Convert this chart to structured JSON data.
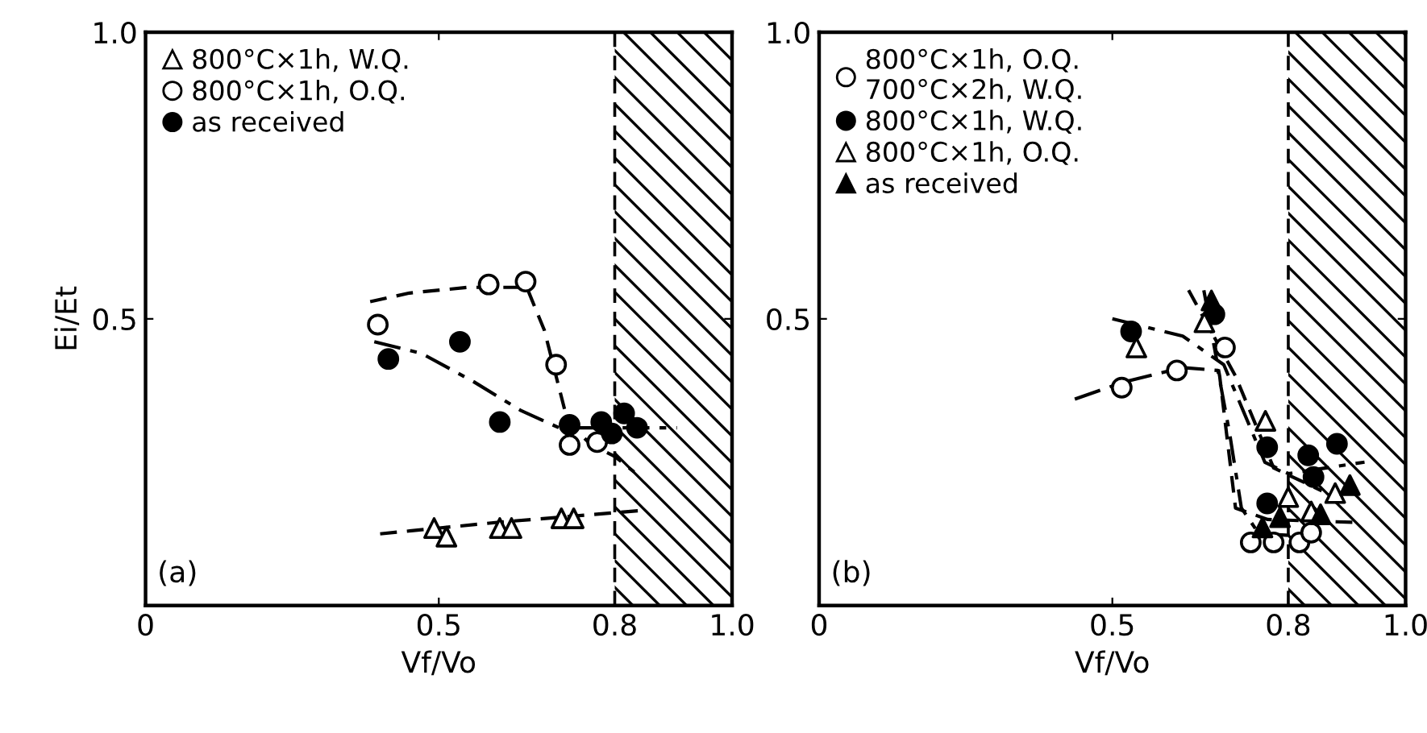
{
  "chart_data": [
    {
      "type": "scatter",
      "xlabel": "Vf/Vo",
      "ylabel": "Ei/Et",
      "xlim": [
        0,
        1.0
      ],
      "ylim": [
        0,
        1.0
      ],
      "xticks": [
        0,
        0.5,
        0.8,
        {
          "value": 1,
          "label": "1.0"
        }
      ],
      "yticks": [
        {
          "value": 0,
          "label": null
        },
        {
          "value": 0.5,
          "label": "0.5"
        },
        {
          "value": 1,
          "label": "1.0"
        }
      ],
      "legend": "top left",
      "grid": false,
      "annotations": [
        "(a)"
      ],
      "bands": [
        {
          "axis": "x",
          "from": 0.8,
          "to": 1.0
        }
      ],
      "ref_lines": [
        {
          "axis": "x",
          "value": 0.8,
          "line_style": "dashed"
        }
      ],
      "series": [
        {
          "name": "800°C×1h, W.Q.",
          "marker": "triangle",
          "color": "#ffffff",
          "x": [
            0.492,
            0.513,
            0.604,
            0.624,
            0.709,
            0.73
          ],
          "values": [
            0.135,
            0.12,
            0.135,
            0.135,
            0.152,
            0.152
          ]
        },
        {
          "name": "800°C×1h, O.Q.",
          "marker": "circle",
          "color": "#ffffff",
          "x": [
            0.396,
            0.585,
            0.648,
            0.7,
            0.723,
            0.77
          ],
          "values": [
            0.49,
            0.56,
            0.565,
            0.42,
            0.28,
            0.285
          ]
        },
        {
          "name": "as received",
          "marker": "circle",
          "color": "#000000",
          "x": [
            0.414,
            0.536,
            0.604,
            0.723,
            0.777,
            0.795,
            0.816,
            0.838
          ],
          "values": [
            0.43,
            0.46,
            0.32,
            0.315,
            0.32,
            0.3,
            0.335,
            0.31
          ]
        },
        {
          "type": "line",
          "line_style": "dashed",
          "color": "#000000",
          "x": [
            0.4,
            0.6,
            0.85
          ],
          "values": [
            0.125,
            0.145,
            0.166
          ]
        },
        {
          "type": "line",
          "line_style": "dashed",
          "color": "#000000",
          "x": [
            0.383,
            0.45,
            0.55,
            0.65,
            0.68,
            0.72,
            0.76,
            0.8,
            0.833
          ],
          "values": [
            0.53,
            0.545,
            0.555,
            0.555,
            0.48,
            0.32,
            0.28,
            0.26,
            0.233
          ]
        },
        {
          "type": "line",
          "line_style": "dashdot",
          "color": "#000000",
          "x": [
            0.39,
            0.47,
            0.56,
            0.64,
            0.705,
            0.8,
            0.906
          ],
          "values": [
            0.46,
            0.44,
            0.39,
            0.34,
            0.31,
            0.31,
            0.31
          ]
        }
      ]
    },
    {
      "type": "scatter",
      "xlabel": "Vf/Vo",
      "xlim": [
        0,
        1.0
      ],
      "ylim": [
        0,
        1.0
      ],
      "xticks": [
        0,
        0.5,
        0.8,
        {
          "value": 1,
          "label": "1.0"
        }
      ],
      "yticks": [
        {
          "value": 0,
          "label": null
        },
        {
          "value": 0.5,
          "label": "0.5"
        },
        {
          "value": 1,
          "label": "1.0"
        }
      ],
      "legend": "top left",
      "grid": false,
      "annotations": [
        "(b)"
      ],
      "bands": [
        {
          "axis": "x",
          "from": 0.8,
          "to": 1.0
        }
      ],
      "ref_lines": [
        {
          "axis": "x",
          "value": 0.8,
          "line_style": "dashed"
        }
      ],
      "series": [
        {
          "name": "800°C×1h, O.Q.\n700°C×2h, W.Q.",
          "marker": "circle",
          "color": "#ffffff",
          "x": [
            0.516,
            0.61,
            0.692,
            0.736,
            0.775,
            0.819,
            0.839
          ],
          "values": [
            0.38,
            0.41,
            0.45,
            0.11,
            0.11,
            0.11,
            0.127
          ]
        },
        {
          "name": "800°C×1h, W.Q.",
          "marker": "circle",
          "color": "#000000",
          "x": [
            0.532,
            0.674,
            0.764,
            0.764,
            0.834,
            0.843,
            0.883
          ],
          "values": [
            0.478,
            0.508,
            0.276,
            0.178,
            0.262,
            0.224,
            0.282
          ]
        },
        {
          "name": "800°C×1h, O.Q.",
          "marker": "triangle",
          "color": "#ffffff",
          "x": [
            0.541,
            0.657,
            0.761,
            0.8,
            0.839,
            0.88
          ],
          "values": [
            0.45,
            0.494,
            0.322,
            0.189,
            0.164,
            0.196
          ]
        },
        {
          "name": "as received",
          "marker": "triangle",
          "color": "#000000",
          "x": [
            0.669,
            0.756,
            0.786,
            0.855,
            0.905
          ],
          "values": [
            0.532,
            0.136,
            0.154,
            0.159,
            0.21
          ]
        },
        {
          "type": "line",
          "line_style": "dashdot",
          "color": "#000000",
          "x": [
            0.436,
            0.52,
            0.62,
            0.68,
            0.7,
            0.72,
            0.75,
            0.85
          ],
          "values": [
            0.36,
            0.39,
            0.415,
            0.41,
            0.3,
            0.17,
            0.125,
            0.12
          ]
        },
        {
          "type": "line",
          "line_style": "dashdot",
          "color": "#000000",
          "x": [
            0.5,
            0.62,
            0.69,
            0.76,
            0.8,
            0.93
          ],
          "values": [
            0.5,
            0.47,
            0.42,
            0.25,
            0.23,
            0.25
          ]
        },
        {
          "type": "line",
          "line_style": "dashed",
          "color": "#000000",
          "x": [
            0.63,
            0.71,
            0.775,
            0.857
          ],
          "values": [
            0.55,
            0.4,
            0.24,
            0.2
          ]
        },
        {
          "type": "line",
          "line_style": "dashed",
          "color": "#000000",
          "x": [
            0.656,
            0.683,
            0.71,
            0.765,
            0.91
          ],
          "values": [
            0.55,
            0.4,
            0.17,
            0.15,
            0.145
          ]
        }
      ]
    }
  ]
}
